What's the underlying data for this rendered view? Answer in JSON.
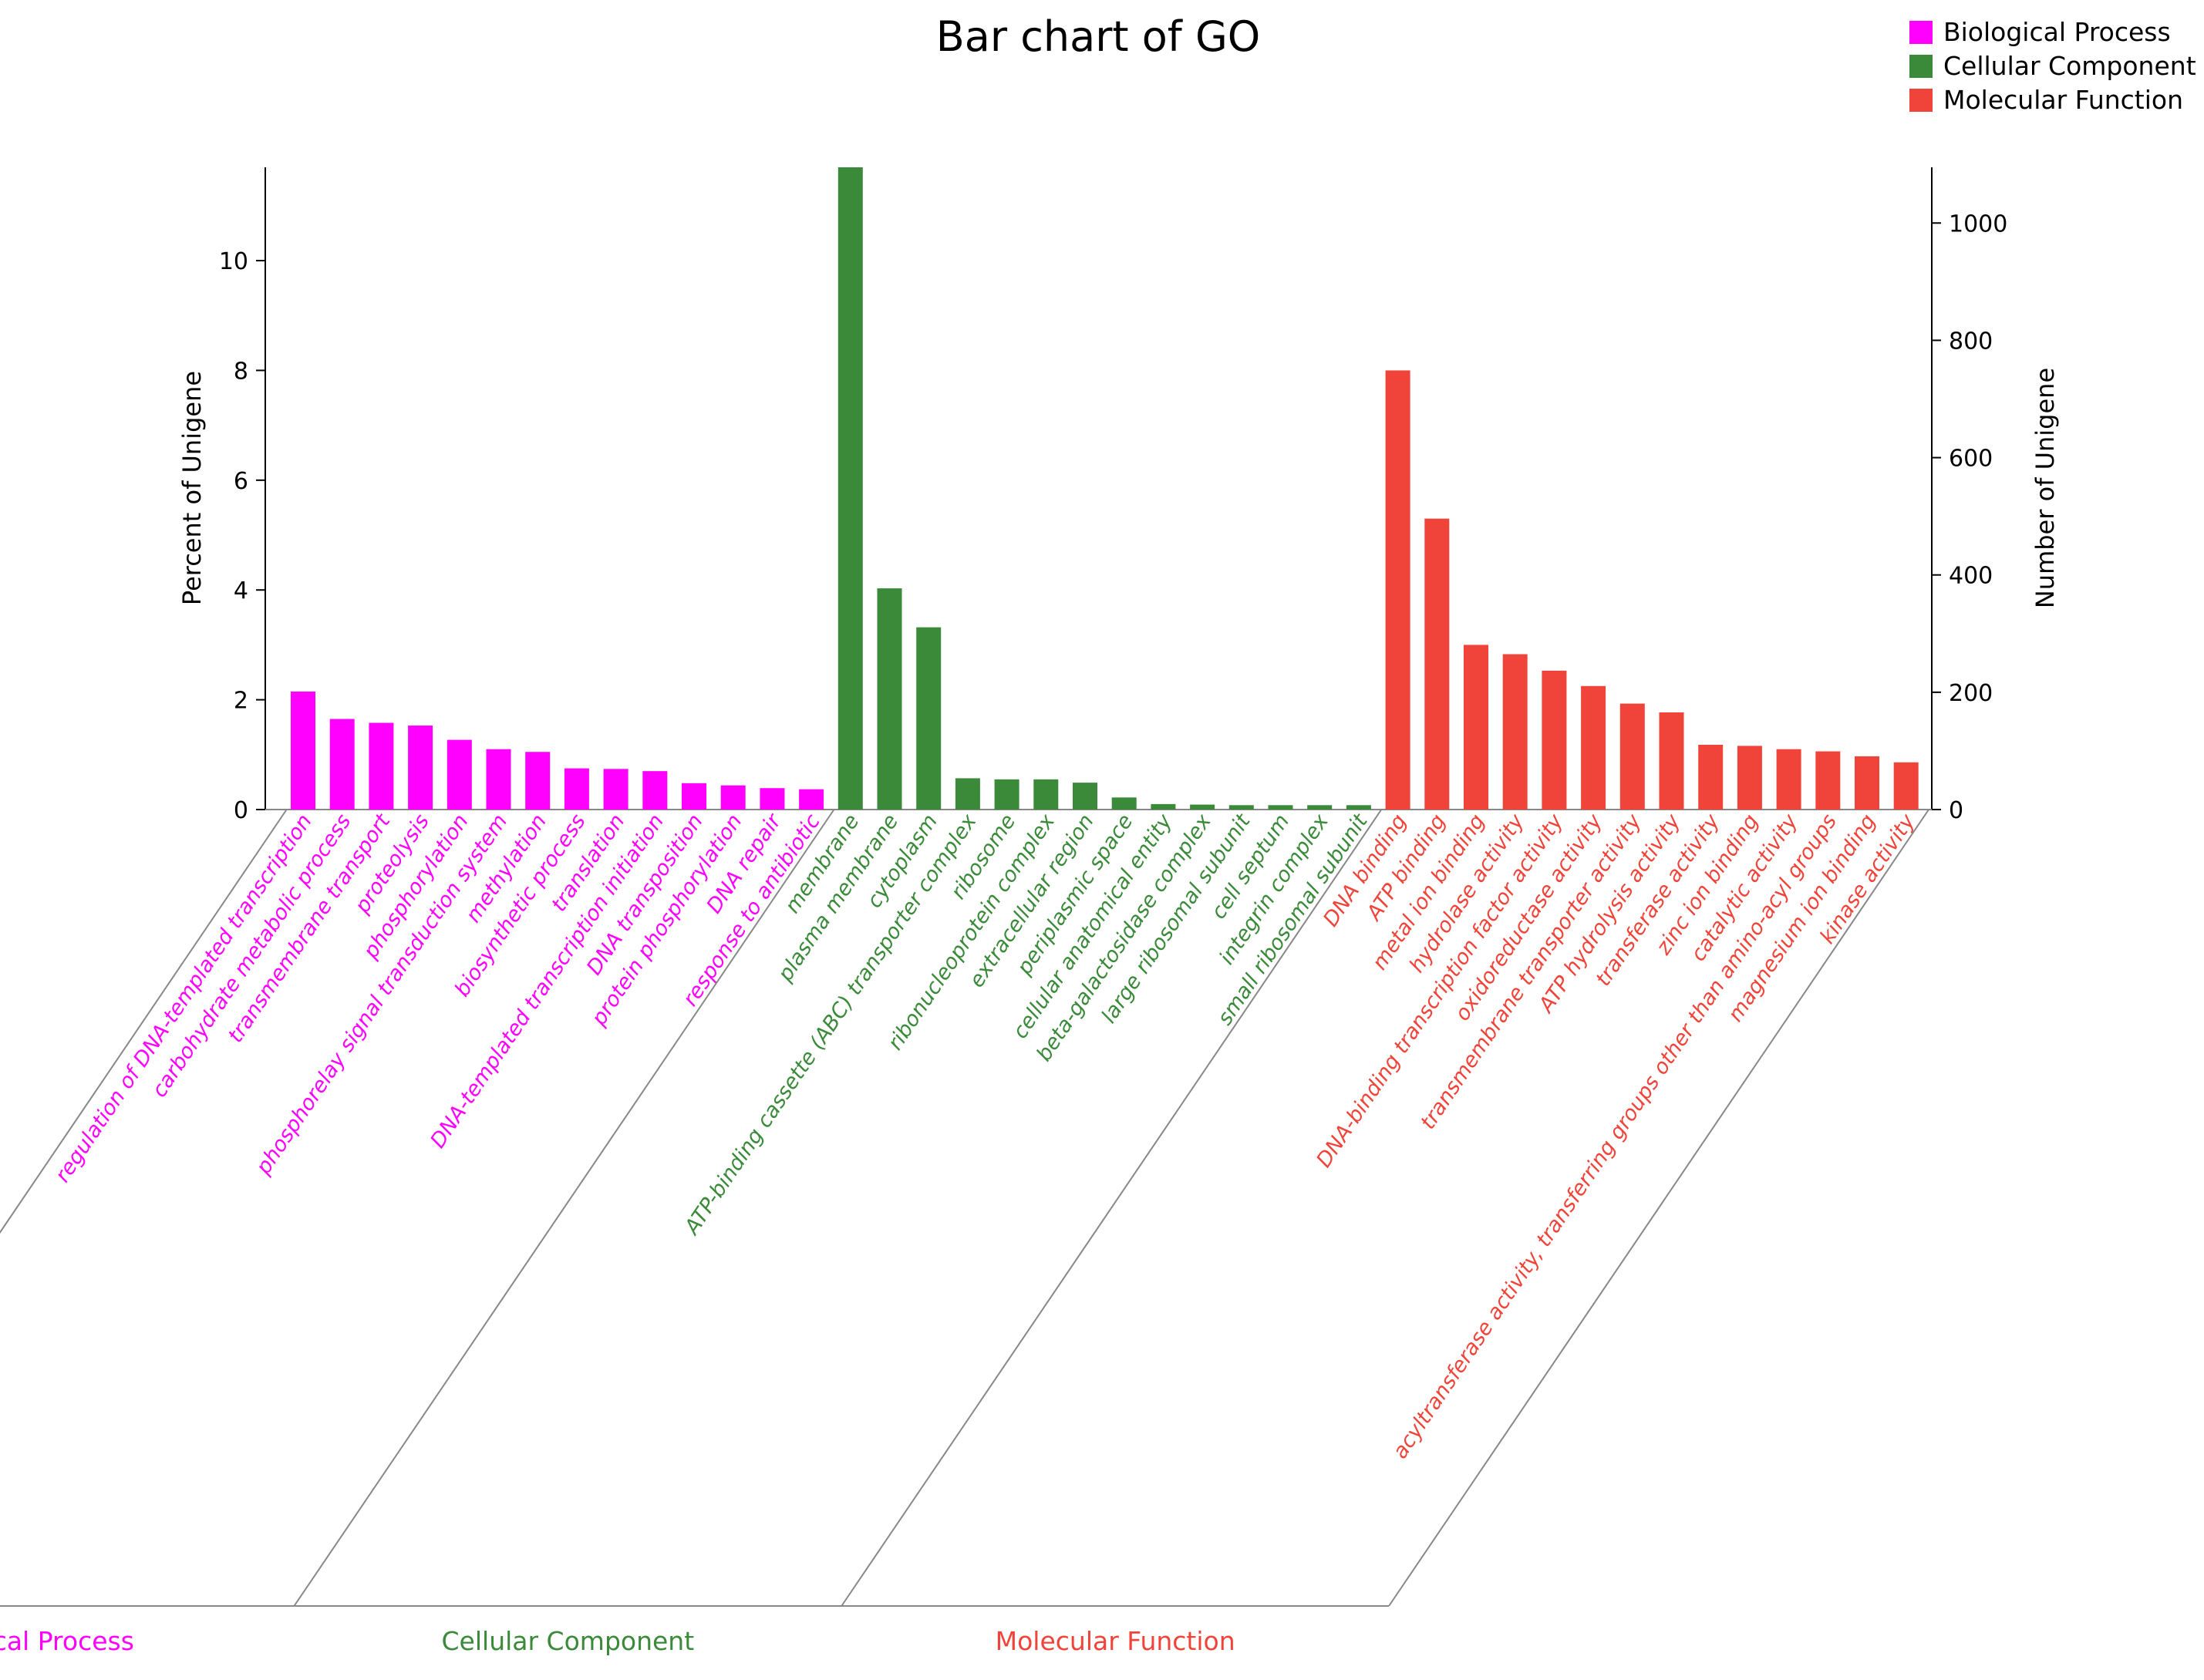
{
  "chart_data": {
    "type": "bar",
    "title": "Bar chart of GO",
    "ylabel_left": "Percent of Unigene",
    "ylabel_right": "Number of Unigene",
    "ylim_left": [
      0,
      11.7
    ],
    "ylim_right": [
      0,
      1095
    ],
    "yticks_left": [
      "0",
      "2",
      "4",
      "6",
      "8",
      "10"
    ],
    "yticks_right": [
      "0",
      "200",
      "400",
      "600",
      "800",
      "1000"
    ],
    "grid": false,
    "legend_position": "top-right",
    "groups": [
      {
        "name": "Biological Process",
        "color": "#FF00FF",
        "categories": [
          "regulation of DNA-templated transcription",
          "carbohydrate metabolic process",
          "transmembrane transport",
          "proteolysis",
          "phosphorylation",
          "phosphorelay signal transduction system",
          "methylation",
          "biosynthetic process",
          "translation",
          "DNA-templated transcription initiation",
          "DNA transposition",
          "protein phosphorylation",
          "DNA repair",
          "response to antibiotic"
        ],
        "values": [
          2.15,
          1.65,
          1.58,
          1.53,
          1.27,
          1.1,
          1.05,
          0.75,
          0.74,
          0.7,
          0.48,
          0.44,
          0.39,
          0.37
        ]
      },
      {
        "name": "Cellular Component",
        "color": "#3A8A3A",
        "categories": [
          "membrane",
          "plasma membrane",
          "cytoplasm",
          "ATP-binding cassette (ABC) transporter complex",
          "ribosome",
          "ribonucleoprotein complex",
          "extracellular region",
          "periplasmic space",
          "cellular anatomical entity",
          "beta-galactosidase complex",
          "large ribosomal subunit",
          "cell septum",
          "integrin complex",
          "small ribosomal subunit"
        ],
        "values": [
          11.7,
          4.03,
          3.32,
          0.57,
          0.55,
          0.55,
          0.49,
          0.22,
          0.1,
          0.09,
          0.08,
          0.08,
          0.08,
          0.08
        ]
      },
      {
        "name": "Molecular Function",
        "color": "#F0443A",
        "categories": [
          "DNA binding",
          "ATP binding",
          "metal ion binding",
          "hydrolase activity",
          "DNA-binding transcription factor activity",
          "oxidoreductase activity",
          "transmembrane transporter activity",
          "ATP hydrolysis activity",
          "transferase activity",
          "zinc ion binding",
          "catalytic activity",
          "acyltransferase activity, transferring groups other than amino-acyl groups",
          "magnesium ion binding",
          "kinase activity"
        ],
        "values": [
          8.0,
          5.3,
          3.0,
          2.83,
          2.53,
          2.25,
          1.93,
          1.77,
          1.18,
          1.16,
          1.1,
          1.06,
          0.97,
          0.86
        ]
      }
    ]
  }
}
